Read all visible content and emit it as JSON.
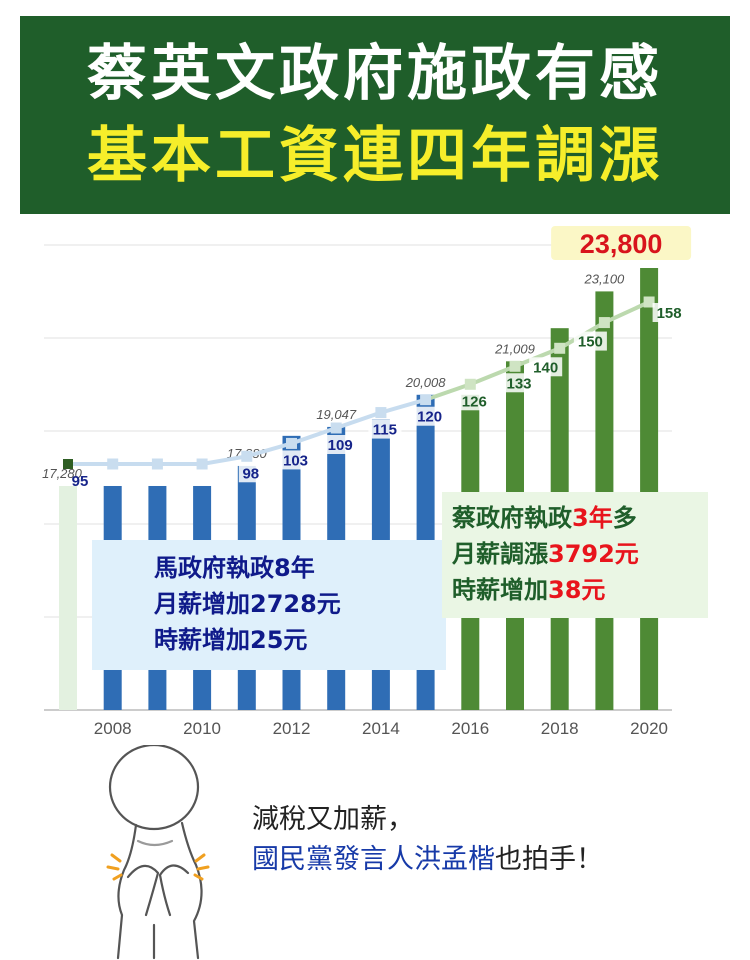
{
  "title": {
    "line1": "蔡英文政府施政有感",
    "line2": "基本工資連四年調漲"
  },
  "chart_data": {
    "type": "bar",
    "x": [
      2007,
      2008,
      2009,
      2010,
      2011,
      2012,
      2013,
      2014,
      2015,
      2016,
      2017,
      2018,
      2019,
      2020
    ],
    "xticks": [
      "2008",
      "2010",
      "2012",
      "2014",
      "2016",
      "2018",
      "2020"
    ],
    "monthly_wage": [
      17280,
      17280,
      17280,
      17280,
      17880,
      18780,
      19047,
      19273,
      20008,
      20008,
      21009,
      22000,
      23100,
      23800
    ],
    "monthly_wage_labels": [
      {
        "index": 0,
        "text": "17,280"
      },
      {
        "index": 4,
        "text": "17,880"
      },
      {
        "index": 6,
        "text": "19,047"
      },
      {
        "index": 8,
        "text": "20,008"
      },
      {
        "index": 10,
        "text": "21,009"
      },
      {
        "index": 12,
        "text": "23,100"
      }
    ],
    "highlight_label": {
      "index": 13,
      "text": "23,800"
    },
    "hourly_wage": [
      95,
      95,
      95,
      95,
      98,
      103,
      109,
      115,
      120,
      126,
      133,
      140,
      150,
      158
    ],
    "hourly_labels": [
      {
        "index": 0,
        "text": "95"
      },
      {
        "index": 4,
        "text": "98"
      },
      {
        "index": 5,
        "text": "103"
      },
      {
        "index": 6,
        "text": "109"
      },
      {
        "index": 7,
        "text": "115"
      },
      {
        "index": 8,
        "text": "120"
      },
      {
        "index": 9,
        "text": "126"
      },
      {
        "index": 10,
        "text": "133"
      },
      {
        "index": 11,
        "text": "140"
      },
      {
        "index": 12,
        "text": "150"
      },
      {
        "index": 13,
        "text": "158"
      }
    ],
    "bar_period": [
      "first",
      "ma",
      "ma",
      "ma",
      "ma",
      "ma",
      "ma",
      "ma",
      "ma",
      "tsai",
      "tsai",
      "tsai",
      "tsai",
      "tsai"
    ],
    "colors": {
      "first": "#e3f1e0",
      "ma": "#2f6db5",
      "tsai": "#4e8a35",
      "line": "#bcd9ae",
      "ma_label": "#16248a",
      "tsai_label": "#1f5e2a",
      "highlight": "#d8141c"
    },
    "grid": true
  },
  "ma_box": {
    "line1": "馬政府執政8年",
    "line2": "月薪增加2728元",
    "line3": "時薪增加25元"
  },
  "tsai_box": {
    "line1_pre": "蔡政府執政",
    "line1_red": "3年",
    "line1_post": "多",
    "line2_pre": "月薪調漲",
    "line2_red": "3792元",
    "line3_pre": "時薪增加",
    "line3_red": "38元"
  },
  "caption": {
    "line1": "減稅又加薪，",
    "line2_blue": "國民黨發言人洪孟楷",
    "line2_rest": "也拍手！"
  }
}
